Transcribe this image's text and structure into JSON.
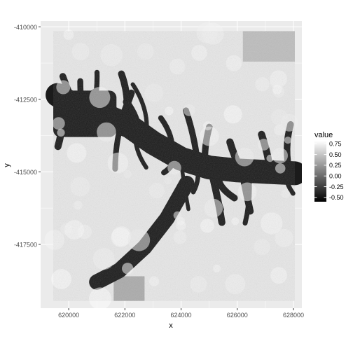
{
  "chart_data": {
    "type": "heatmap",
    "subtype": "raster",
    "title": "",
    "xlabel": "x",
    "ylabel": "y",
    "xlim": [
      619000,
      628300
    ],
    "ylim": [
      -419700,
      -409800
    ],
    "x_ticks": [
      620000,
      622000,
      624000,
      626000,
      628000
    ],
    "y_ticks": [
      -410000,
      -412500,
      -415000,
      -417500
    ],
    "x_tick_labels": [
      "620000",
      "622000",
      "624000",
      "626000",
      "628000"
    ],
    "y_tick_labels": [
      "-410000",
      "-412500",
      "-415000",
      "-417500"
    ],
    "raster_extent": {
      "x": [
        619450,
        628050
      ],
      "y": [
        -419450,
        -410150
      ]
    },
    "background_color": "#EBEBEB",
    "grid": true,
    "grid_color": "#FFFFFF",
    "legend": {
      "title": "value",
      "position": "right",
      "breaks": [
        0.75,
        0.5,
        0.25,
        0.0,
        -0.25,
        -0.5
      ],
      "labels": [
        "0.75",
        "0.50",
        "0.25",
        "0.00",
        "-0.25",
        "-0.50"
      ],
      "range": [
        -0.6,
        0.82
      ],
      "color_low": "#000000",
      "color_high": "#FFFFFF"
    },
    "channel": {
      "value": -0.45,
      "path": [
        [
          619600,
          -412350
        ],
        [
          620500,
          -412900
        ],
        [
          621300,
          -413050
        ],
        [
          622200,
          -413450
        ],
        [
          623000,
          -414000
        ],
        [
          624000,
          -414550
        ],
        [
          625000,
          -414850
        ],
        [
          626000,
          -414950
        ],
        [
          627000,
          -415000
        ],
        [
          628050,
          -415050
        ]
      ],
      "west_bay": {
        "x": [
          619450,
          621700
        ],
        "y": [
          -413800,
          -412200
        ],
        "value": -0.45
      },
      "lower_arm": [
        [
          621000,
          -418800
        ],
        [
          621800,
          -418400
        ],
        [
          622700,
          -417600
        ],
        [
          623500,
          -416600
        ],
        [
          624200,
          -415400
        ]
      ]
    },
    "mid_tone_patches": [
      {
        "x": [
          626200,
          628050
        ],
        "y": [
          -411200,
          -410150
        ],
        "value": 0.45
      },
      {
        "x": [
          621600,
          622700
        ],
        "y": [
          -419450,
          -418600
        ],
        "value": 0.35
      }
    ]
  }
}
